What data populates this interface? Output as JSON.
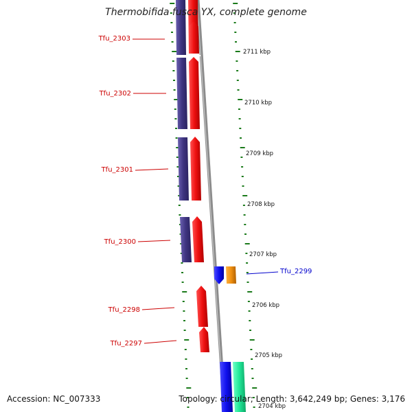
{
  "map": {
    "title": "Thermobifida fusca YX, complete genome",
    "accession_label": "Accession: NC_007333",
    "summary_label": "Topology: circular; Length: 3,642,249 bp; Genes: 3,176",
    "colors": {
      "track_purple": "#4a3f8c",
      "track_red": "#f01818",
      "track_blue": "#1a1aee",
      "track_orange": "#f29010",
      "track_teal": "#2ae8a0",
      "tick_green": "#1a7a1a",
      "backbone_gray": "#8c8c8c",
      "left_label": "#cc0000",
      "right_label": "#0000cc"
    },
    "position_ticks": [
      "2711 kbp",
      "2710 kbp",
      "2709 kbp",
      "2708 kbp",
      "2707 kbp",
      "2706 kbp",
      "2705 kbp",
      "2704 kbp"
    ],
    "genes": [
      {
        "locus": "Tfu_2303",
        "strand": "-",
        "side": "left"
      },
      {
        "locus": "Tfu_2302",
        "strand": "-",
        "side": "left"
      },
      {
        "locus": "Tfu_2301",
        "strand": "-",
        "side": "left"
      },
      {
        "locus": "Tfu_2300",
        "strand": "-",
        "side": "left"
      },
      {
        "locus": "Tfu_2299",
        "strand": "+",
        "side": "right"
      },
      {
        "locus": "Tfu_2298",
        "strand": "-",
        "side": "left"
      },
      {
        "locus": "Tfu_2297",
        "strand": "-",
        "side": "left"
      }
    ]
  }
}
